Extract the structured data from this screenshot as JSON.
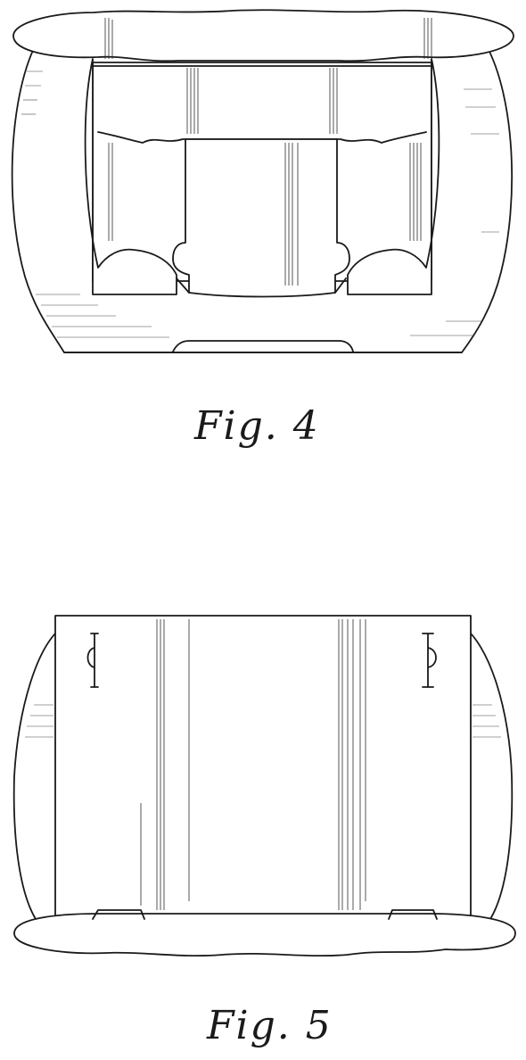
{
  "figures": [
    {
      "caption": "Fig. 4"
    },
    {
      "caption": "Fig. 5"
    }
  ]
}
